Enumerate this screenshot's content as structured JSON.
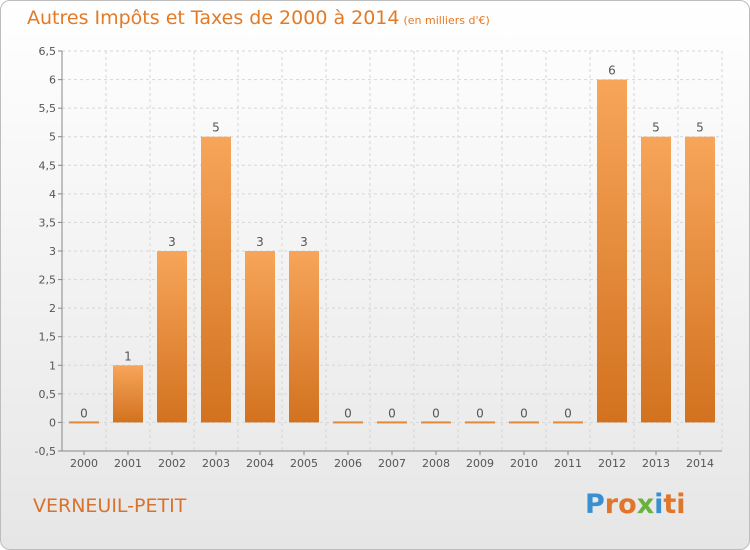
{
  "header": {
    "title": "Autres Impôts et Taxes de 2000 à 2014",
    "unit": "(en milliers d'€)"
  },
  "footer": {
    "place": "VERNEUIL-PETIT",
    "brand_letters": [
      "P",
      "r",
      "o",
      "x",
      "i",
      "ti"
    ]
  },
  "colors": {
    "title": "#e37a26",
    "bar_light": "#f7a55a",
    "bar_dark": "#d2721f",
    "place": "#d8722c"
  },
  "chart_data": {
    "type": "bar",
    "title": "Autres Impôts et Taxes de 2000 à 2014",
    "categories": [
      "2000",
      "2001",
      "2002",
      "2003",
      "2004",
      "2005",
      "2006",
      "2007",
      "2008",
      "2009",
      "2010",
      "2011",
      "2012",
      "2013",
      "2014"
    ],
    "values": [
      0,
      1,
      3,
      5,
      3,
      3,
      0,
      0,
      0,
      0,
      0,
      0,
      6,
      5,
      5
    ],
    "value_labels": [
      "0",
      "1",
      "3",
      "5",
      "3",
      "3",
      "0",
      "0",
      "0",
      "0",
      "0",
      "0",
      "6",
      "5",
      "5"
    ],
    "ylim": [
      -0.5,
      6.5
    ],
    "yticks": [
      -0.5,
      0,
      0.5,
      1,
      1.5,
      2,
      2.5,
      3,
      3.5,
      4,
      4.5,
      5,
      5.5,
      6,
      6.5
    ],
    "ytick_labels": [
      "-0,5",
      "0",
      "0,5",
      "1",
      "1,5",
      "2",
      "2,5",
      "3",
      "3,5",
      "4",
      "4,5",
      "5",
      "5,5",
      "6",
      "6,5"
    ],
    "grid": true,
    "xlabel": "",
    "ylabel": ""
  }
}
